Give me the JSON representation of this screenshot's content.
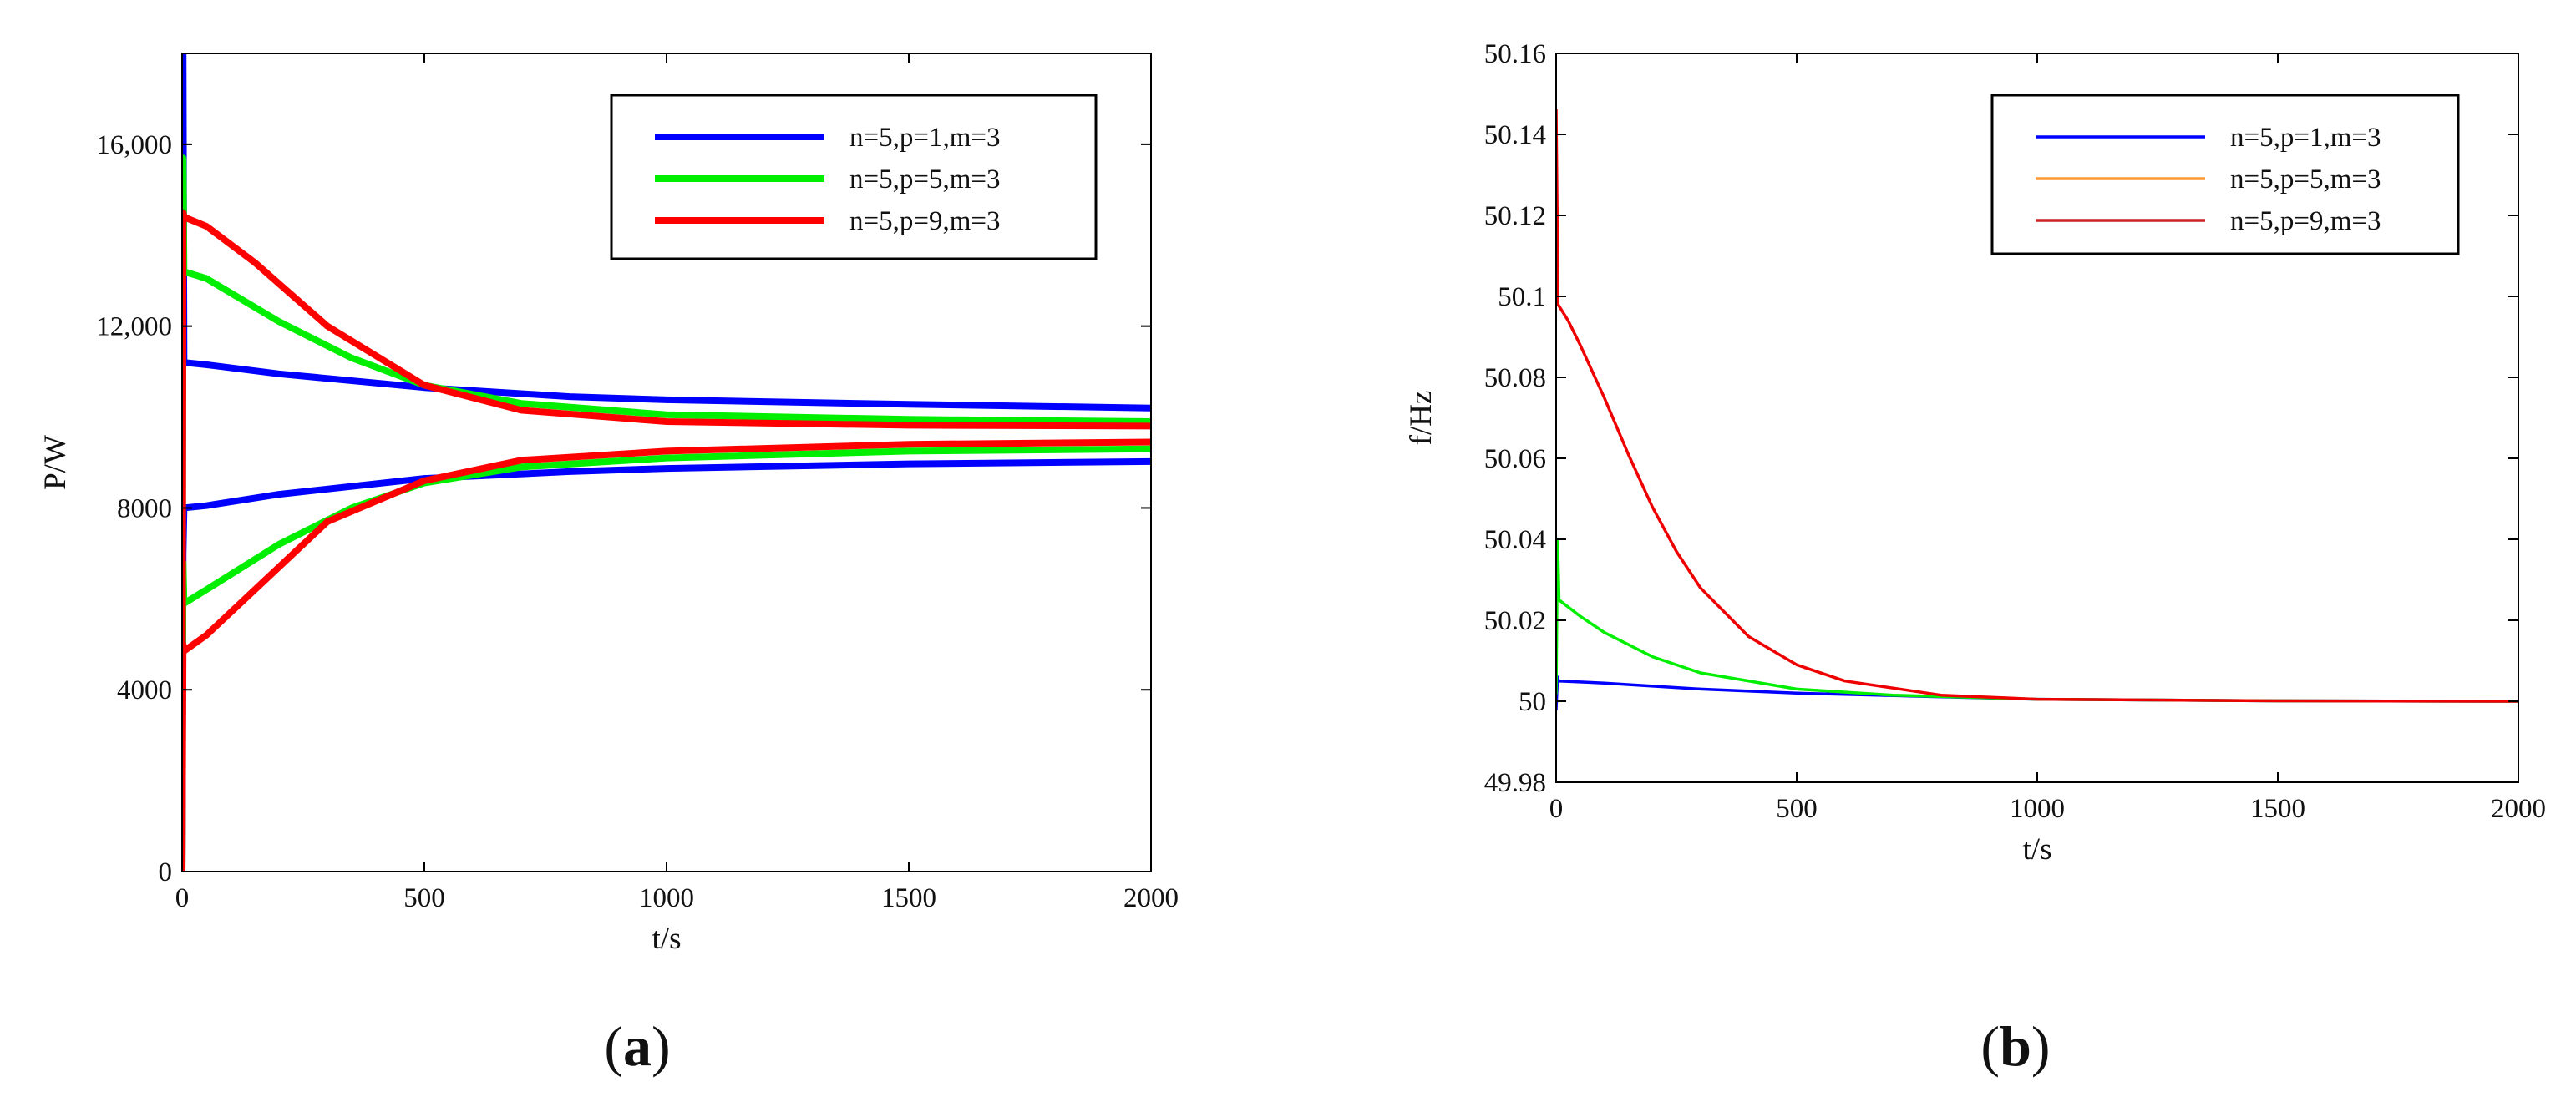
{
  "chart_data": [
    {
      "type": "line",
      "panel_label_letter": "a",
      "xlabel": "t/s",
      "ylabel": "P/W",
      "xlim": [
        0,
        2000
      ],
      "ylim": [
        0,
        18000
      ],
      "x_ticks": [
        0,
        500,
        1000,
        1500,
        2000
      ],
      "x_tick_labels": [
        "0",
        "500",
        "1000",
        "1500",
        "2000"
      ],
      "y_ticks": [
        0,
        4000,
        8000,
        12000,
        16000
      ],
      "y_tick_labels": [
        "0",
        "4000",
        "8000",
        "12,000",
        "16,000"
      ],
      "grid": false,
      "legend_position": "top-right",
      "series": [
        {
          "name": "n=5,p=1,m=3",
          "color": "#0000ff",
          "stroke": 8,
          "lines": [
            [
              [
                0,
                0
              ],
              [
                2,
                18000
              ],
              [
                4,
                11200
              ],
              [
                50,
                11150
              ],
              [
                200,
                10950
              ],
              [
                500,
                10650
              ],
              [
                800,
                10450
              ],
              [
                1000,
                10380
              ],
              [
                1500,
                10280
              ],
              [
                2000,
                10200
              ]
            ],
            [
              [
                0,
                0
              ],
              [
                2,
                7000
              ],
              [
                4,
                8000
              ],
              [
                50,
                8050
              ],
              [
                200,
                8300
              ],
              [
                500,
                8650
              ],
              [
                800,
                8800
              ],
              [
                1000,
                8870
              ],
              [
                1500,
                8970
              ],
              [
                2000,
                9020
              ]
            ]
          ]
        },
        {
          "name": "n=5,p=5,m=3",
          "color": "#00ee00",
          "stroke": 8,
          "lines": [
            [
              [
                0,
                0
              ],
              [
                2,
                15700
              ],
              [
                4,
                13200
              ],
              [
                50,
                13050
              ],
              [
                200,
                12100
              ],
              [
                350,
                11300
              ],
              [
                500,
                10700
              ],
              [
                700,
                10300
              ],
              [
                1000,
                10050
              ],
              [
                1500,
                9950
              ],
              [
                2000,
                9900
              ]
            ],
            [
              [
                0,
                0
              ],
              [
                2,
                6800
              ],
              [
                4,
                5900
              ],
              [
                50,
                6200
              ],
              [
                200,
                7200
              ],
              [
                350,
                8000
              ],
              [
                500,
                8550
              ],
              [
                700,
                8900
              ],
              [
                1000,
                9100
              ],
              [
                1500,
                9250
              ],
              [
                2000,
                9300
              ]
            ]
          ]
        },
        {
          "name": "n=5,p=9,m=3",
          "color": "#ff0000",
          "stroke": 8,
          "lines": [
            [
              [
                0,
                0
              ],
              [
                2,
                14500
              ],
              [
                4,
                14400
              ],
              [
                50,
                14200
              ],
              [
                150,
                13400
              ],
              [
                300,
                12000
              ],
              [
                500,
                10700
              ],
              [
                700,
                10150
              ],
              [
                1000,
                9900
              ],
              [
                1500,
                9820
              ],
              [
                2000,
                9800
              ]
            ],
            [
              [
                0,
                0
              ],
              [
                2,
                5000
              ],
              [
                4,
                4850
              ],
              [
                50,
                5200
              ],
              [
                150,
                6200
              ],
              [
                300,
                7700
              ],
              [
                500,
                8600
              ],
              [
                700,
                9050
              ],
              [
                1000,
                9250
              ],
              [
                1500,
                9400
              ],
              [
                2000,
                9450
              ]
            ]
          ]
        }
      ]
    },
    {
      "type": "line",
      "panel_label_letter": "b",
      "xlabel": "t/s",
      "ylabel": "f/Hz",
      "xlim": [
        0,
        2000
      ],
      "ylim": [
        49.98,
        50.16
      ],
      "x_ticks": [
        0,
        500,
        1000,
        1500,
        2000
      ],
      "x_tick_labels": [
        "0",
        "500",
        "1000",
        "1500",
        "2000"
      ],
      "y_ticks": [
        49.98,
        50,
        50.02,
        50.04,
        50.06,
        50.08,
        50.1,
        50.12,
        50.14,
        50.16
      ],
      "y_tick_labels": [
        "49.98",
        "50",
        "50.02",
        "50.04",
        "50.06",
        "50.08",
        "50.1",
        "50.12",
        "50.14",
        "50.16"
      ],
      "grid": false,
      "legend_position": "top-right",
      "series": [
        {
          "name": "n=5,p=1,m=3",
          "color": "#0000ff",
          "legend_color": "#0000ff",
          "stroke": 3.5,
          "lines": [
            [
              [
                0,
                49.998
              ],
              [
                3,
                50.006
              ],
              [
                5,
                50.005
              ],
              [
                100,
                50.0045
              ],
              [
                300,
                50.003
              ],
              [
                500,
                50.002
              ],
              [
                1000,
                50.0005
              ],
              [
                1500,
                50.0001
              ],
              [
                2000,
                50.0
              ]
            ]
          ]
        },
        {
          "name": "n=5,p=5,m=3",
          "color": "#00ee00",
          "legend_color": "#ff9933",
          "stroke": 3.5,
          "lines": [
            [
              [
                0,
                50.002
              ],
              [
                3,
                50.04
              ],
              [
                6,
                50.025
              ],
              [
                50,
                50.021
              ],
              [
                100,
                50.017
              ],
              [
                200,
                50.011
              ],
              [
                300,
                50.007
              ],
              [
                500,
                50.003
              ],
              [
                700,
                50.0015
              ],
              [
                1000,
                50.0005
              ],
              [
                1500,
                50.0001
              ],
              [
                2000,
                50.0
              ]
            ]
          ]
        },
        {
          "name": "n=5,p=9,m=3",
          "color": "#ee0000",
          "legend_color": "#cc2222",
          "stroke": 3.5,
          "lines": [
            [
              [
                0,
                50.146
              ],
              [
                4,
                50.098
              ],
              [
                25,
                50.094
              ],
              [
                50,
                50.088
              ],
              [
                100,
                50.075
              ],
              [
                150,
                50.061
              ],
              [
                200,
                50.048
              ],
              [
                250,
                50.037
              ],
              [
                300,
                50.028
              ],
              [
                400,
                50.016
              ],
              [
                500,
                50.009
              ],
              [
                600,
                50.005
              ],
              [
                800,
                50.0015
              ],
              [
                1000,
                50.0005
              ],
              [
                1500,
                50.0001
              ],
              [
                2000,
                50.0
              ]
            ]
          ]
        }
      ]
    }
  ]
}
